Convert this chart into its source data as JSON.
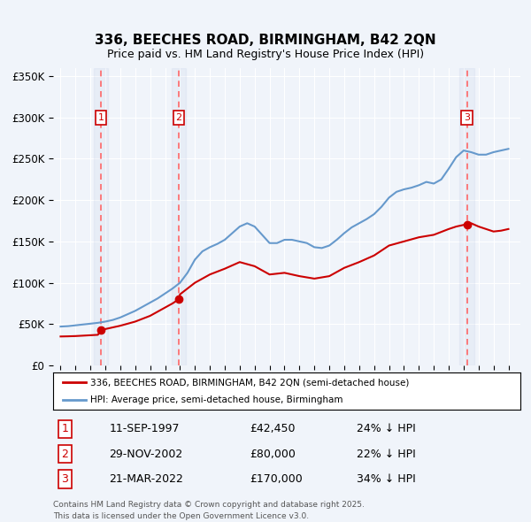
{
  "title1": "336, BEECHES ROAD, BIRMINGHAM, B42 2QN",
  "title2": "Price paid vs. HM Land Registry's House Price Index (HPI)",
  "legend_label_red": "336, BEECHES ROAD, BIRMINGHAM, B42 2QN (semi-detached house)",
  "legend_label_blue": "HPI: Average price, semi-detached house, Birmingham",
  "sale_dates_str": [
    "11-SEP-1997",
    "29-NOV-2002",
    "21-MAR-2022"
  ],
  "sale_prices": [
    42450,
    80000,
    170000
  ],
  "sale_hpi_pct": [
    "24% ↓ HPI",
    "22% ↓ HPI",
    "34% ↓ HPI"
  ],
  "sale_years": [
    1997.7,
    2002.92,
    2022.22
  ],
  "footnote1": "Contains HM Land Registry data © Crown copyright and database right 2025.",
  "footnote2": "This data is licensed under the Open Government Licence v3.0.",
  "background_color": "#f0f4fa",
  "plot_background": "#f0f4fa",
  "red_color": "#cc0000",
  "blue_color": "#6699cc",
  "grid_color": "#ffffff",
  "dashed_color": "#ff6666",
  "ylim": [
    0,
    360000
  ],
  "xlim_start": 1994.5,
  "xlim_end": 2025.8
}
